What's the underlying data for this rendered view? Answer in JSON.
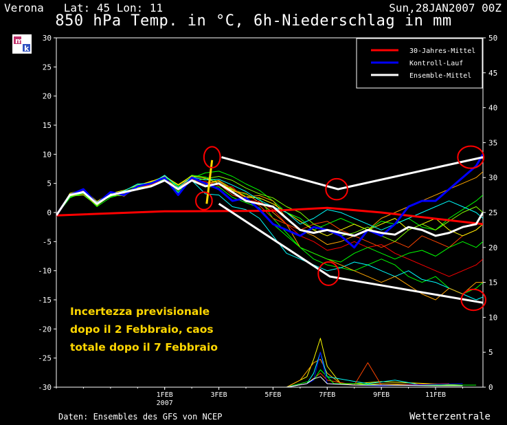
{
  "header": {
    "location": "Verona   Lat: 45 Lon: 11",
    "date": "Sun,28JAN2007 00Z",
    "title": "850 hPa Temp. in °C, 6h-Niederschlag in mm"
  },
  "footer": {
    "source": "Daten: Ensembles des GFS von NCEP",
    "brand": "Wetterzentrale"
  },
  "annotation": {
    "line1": "Incertezza previsionale",
    "line2": "dopo il 2 Febbraio, caos",
    "line3": "totale dopo il 7 Febbraio"
  },
  "colors": {
    "climate": "#ff0000",
    "control": "#0000ff",
    "ensemble_mean": "#ffffff",
    "annotation": "#ffd700",
    "markup": "#ff0000"
  },
  "chart_data": {
    "type": "line",
    "title": "850 hPa Temp. in °C, 6h-Niederschlag in mm",
    "x_ticks": [
      {
        "day": 4,
        "label": "1FEB",
        "sublabel": "2007"
      },
      {
        "day": 6,
        "label": "3FEB"
      },
      {
        "day": 8,
        "label": "5FEB"
      },
      {
        "day": 10,
        "label": "7FEB"
      },
      {
        "day": 12,
        "label": "9FEB"
      },
      {
        "day": 14,
        "label": "11FEB"
      }
    ],
    "x_range_days": [
      0,
      15.75
    ],
    "y_left": {
      "min": -30,
      "max": 30,
      "step": 5,
      "ticks": [
        "30",
        "25",
        "20",
        "15",
        "10",
        "5",
        "0",
        "-5",
        "-10",
        "-15",
        "-20",
        "-25",
        "-30"
      ]
    },
    "y_right": {
      "min": 0,
      "max": 50,
      "step": 5,
      "ticks": [
        "50",
        "45",
        "40",
        "35",
        "30",
        "25",
        "20",
        "15",
        "10",
        "5",
        "0"
      ]
    },
    "legend": {
      "position": "top-right",
      "entries": [
        {
          "label": "30-Jahres-Mittel",
          "color": "#ff0000"
        },
        {
          "label": "Kontroll-Lauf",
          "color": "#0000ff"
        },
        {
          "label": "Ensemble-Mittel",
          "color": "#ffffff"
        }
      ]
    },
    "time_step_days": 0.25,
    "series": [
      {
        "name": "30-Jahres-Mittel",
        "color": "#ff0000",
        "width": 3,
        "x": [
          0,
          4,
          8,
          10,
          12,
          15.75
        ],
        "y": [
          -0.5,
          0.2,
          0.3,
          0.8,
          0,
          -2
        ]
      },
      {
        "name": "Kontroll-Lauf",
        "color": "#0000ff",
        "width": 3,
        "x": [
          0,
          0.5,
          1,
          1.5,
          2,
          2.5,
          3,
          3.5,
          4,
          4.5,
          5,
          5.5,
          6,
          6.5,
          7,
          7.5,
          8,
          8.5,
          9,
          9.5,
          10,
          10.5,
          11,
          11.5,
          12,
          12.5,
          13,
          13.5,
          14,
          14.5,
          15,
          15.5,
          15.75
        ],
        "y": [
          -0.5,
          3,
          4,
          1.5,
          3.5,
          3,
          4.5,
          5,
          6,
          3,
          6,
          5,
          4,
          2,
          2.5,
          0.5,
          -2,
          -3,
          -4,
          -2.5,
          -3,
          -4,
          -6,
          -3,
          -4,
          -2,
          1,
          2,
          2,
          4,
          6,
          8,
          10
        ]
      },
      {
        "name": "Ensemble-Mittel",
        "color": "#ffffff",
        "width": 3,
        "x": [
          0,
          0.5,
          1,
          1.5,
          2,
          2.5,
          3,
          3.5,
          4,
          4.5,
          5,
          5.5,
          6,
          6.5,
          7,
          7.5,
          8,
          8.5,
          9,
          9.5,
          10,
          10.5,
          11,
          11.5,
          12,
          12.5,
          13,
          13.5,
          14,
          14.5,
          15,
          15.5,
          15.75
        ],
        "y": [
          -0.5,
          3,
          3.5,
          1.5,
          3,
          3.5,
          4,
          4.5,
          5.5,
          4,
          5.5,
          4.5,
          5,
          3.5,
          2,
          1.5,
          1,
          -1,
          -3,
          -3.5,
          -3,
          -3.5,
          -4,
          -3,
          -3.5,
          -3.8,
          -2.5,
          -3,
          -4,
          -3.5,
          -2.5,
          -2,
          0
        ]
      }
    ],
    "members": [
      {
        "color": "#00ff00",
        "y": [
          -0.5,
          2.5,
          3.6,
          1.2,
          3.2,
          3.1,
          4.8,
          5.2,
          6.1,
          4.6,
          6.4,
          6.1,
          5.3,
          4.0,
          3.1,
          2.4,
          -1.0,
          -3.5,
          -6.0,
          -8.0,
          -9.0,
          -9.5,
          -10.0,
          -9.0,
          -8.0,
          -9.0,
          -11.0,
          -12.0,
          -11.0,
          -13.0,
          -14.0,
          -13.0,
          -12.0
        ]
      },
      {
        "color": "#00ff00",
        "y": [
          -0.5,
          3.0,
          3.2,
          1.7,
          2.7,
          3.6,
          4.3,
          4.7,
          5.8,
          4.4,
          5.9,
          6.8,
          7.1,
          6.2,
          4.9,
          3.8,
          2.0,
          0.0,
          -1.0,
          -3.0,
          -2.0,
          -1.0,
          -2.0,
          -3.0,
          -1.5,
          -2.0,
          -1.0,
          -2.5,
          -3.0,
          -1.0,
          0.5,
          2.0,
          3.0
        ]
      },
      {
        "color": "#00ffff",
        "y": [
          -0.5,
          2.7,
          3.8,
          1.8,
          2.9,
          3.4,
          4.4,
          4.9,
          5.7,
          3.4,
          5.5,
          3.2,
          3.0,
          1.0,
          0.5,
          -1.0,
          -4.0,
          -7.0,
          -8.0,
          -9.0,
          -10.0,
          -9.5,
          -8.5,
          -9.0,
          -10.0,
          -11.0,
          -10.0,
          -11.5,
          -12.0,
          -13.0,
          -14.0,
          -15.0,
          -14.5
        ]
      },
      {
        "color": "#ffa500",
        "y": [
          -0.5,
          3.2,
          3.5,
          1.1,
          3.4,
          2.8,
          4.6,
          5.4,
          5.9,
          4.1,
          6.2,
          5.0,
          5.5,
          4.1,
          2.7,
          2.9,
          2.0,
          -1.0,
          -3.0,
          -4.0,
          -5.5,
          -5.0,
          -4.0,
          -3.0,
          -1.0,
          0.0,
          1.0,
          2.0,
          3.0,
          4.0,
          5.0,
          6.0,
          7.0
        ]
      },
      {
        "color": "#ffa500",
        "y": [
          -0.5,
          2.9,
          3.4,
          1.6,
          2.8,
          3.5,
          4.0,
          5.1,
          6.3,
          4.7,
          6.0,
          4.8,
          5.4,
          3.7,
          3.3,
          1.7,
          0.0,
          -2.0,
          -6.0,
          -7.0,
          -8.0,
          -9.0,
          -10.0,
          -11.0,
          -12.0,
          -11.0,
          -12.5,
          -14.0,
          -15.0,
          -13.0,
          -14.0,
          -12.0,
          -12.0
        ]
      },
      {
        "color": "#ff0000",
        "y": [
          -0.5,
          2.8,
          3.1,
          1.3,
          3.1,
          3.3,
          4.5,
          4.6,
          6.0,
          3.8,
          5.7,
          5.3,
          4.6,
          4.4,
          2.1,
          1.9,
          0.5,
          -2.0,
          -4.0,
          -5.0,
          -6.5,
          -6.0,
          -5.0,
          -6.0,
          -5.5,
          -7.0,
          -8.0,
          -9.0,
          -10.0,
          -11.0,
          -10.0,
          -9.0,
          -8.0
        ]
      },
      {
        "color": "#ff4500",
        "y": [
          -0.5,
          3.1,
          3.7,
          1.4,
          3.6,
          3.0,
          4.2,
          4.8,
          5.6,
          4.2,
          5.8,
          4.6,
          4.9,
          3.0,
          2.3,
          1.2,
          -1.0,
          -2.0,
          -3.0,
          -2.0,
          -1.5,
          -3.0,
          -4.0,
          -5.0,
          -6.0,
          -5.0,
          -6.0,
          -4.0,
          -5.0,
          -6.0,
          -4.0,
          -3.0,
          -2.0
        ]
      },
      {
        "color": "#ffff00",
        "y": [
          -0.5,
          3.3,
          3.9,
          1.9,
          3.3,
          3.8,
          4.7,
          5.3,
          6.2,
          4.8,
          6.3,
          5.9,
          5.0,
          3.9,
          2.6,
          2.5,
          1.5,
          0.0,
          -1.5,
          -3.0,
          -4.0,
          -3.0,
          -2.0,
          -3.0,
          -2.0,
          -1.0,
          -3.0,
          -2.0,
          -1.0,
          -3.0,
          -4.0,
          -3.0,
          -2.0
        ]
      },
      {
        "color": "#00ff00",
        "y": [
          -0.5,
          2.6,
          3.3,
          1.0,
          2.6,
          3.2,
          4.1,
          4.4,
          5.5,
          3.6,
          5.6,
          4.4,
          4.4,
          2.6,
          1.7,
          0.8,
          -2.0,
          -4.0,
          -6.0,
          -7.0,
          -8.0,
          -8.5,
          -7.0,
          -6.0,
          -7.0,
          -8.0,
          -7.0,
          -6.5,
          -7.5,
          -6.0,
          -5.0,
          -6.0,
          -5.0
        ]
      },
      {
        "color": "#00ffff",
        "y": [
          -0.5,
          3.0,
          3.6,
          1.5,
          3.0,
          3.7,
          4.9,
          5.0,
          6.4,
          4.3,
          6.1,
          5.6,
          5.7,
          4.7,
          3.6,
          2.1,
          1.0,
          0.0,
          -2.0,
          -1.0,
          0.5,
          0.0,
          -1.0,
          -2.0,
          -3.0,
          -2.0,
          -1.0,
          0.0,
          1.0,
          2.0,
          1.0,
          0.0,
          -1.0
        ]
      },
      {
        "color": "#7fff00",
        "y": [
          -0.5,
          2.8,
          3.0,
          1.2,
          2.9,
          2.9,
          4.3,
          4.5,
          5.8,
          3.9,
          5.4,
          5.8,
          6.2,
          5.5,
          4.2,
          3.2,
          2.5,
          1.0,
          0.0,
          -2.0,
          -3.0,
          -4.0,
          -3.5,
          -2.5,
          -4.0,
          -5.0,
          -3.0,
          -2.0,
          -3.0,
          -1.5,
          0.0,
          1.0,
          0.0
        ]
      }
    ],
    "precip_members": [
      {
        "color": "#ffff00",
        "x": [
          8.5,
          9.25,
          9.5,
          9.75,
          10,
          10.5,
          11,
          12,
          15
        ],
        "y": [
          0,
          1.5,
          4,
          7,
          3,
          0.5,
          0.5,
          0.8,
          0.3
        ]
      },
      {
        "color": "#ffa500",
        "x": [
          8.5,
          9,
          9.5,
          9.75,
          10,
          10.5,
          11,
          12,
          15
        ],
        "y": [
          0,
          1,
          3.5,
          4,
          2,
          0.5,
          0.3,
          0.5,
          0.2
        ]
      },
      {
        "color": "#00ffff",
        "x": [
          8.5,
          9.25,
          9.5,
          9.75,
          10,
          11.5,
          12.5,
          13.5,
          14.5
        ],
        "y": [
          0,
          0.5,
          2,
          5,
          1.5,
          0.5,
          1,
          0.3,
          0.5
        ]
      },
      {
        "color": "#ff4500",
        "x": [
          8.5,
          9.25,
          9.75,
          10,
          11,
          11.5,
          12,
          14.5
        ],
        "y": [
          0,
          0.5,
          2,
          1,
          0.3,
          3.5,
          0.3,
          0.5
        ]
      },
      {
        "color": "#00ff00",
        "x": [
          8.5,
          9.5,
          9.75,
          10.25,
          11,
          12,
          13,
          15.5
        ],
        "y": [
          0,
          1,
          2.5,
          0.5,
          0.5,
          0.3,
          0.3,
          0.3
        ]
      },
      {
        "color": "#0000ff",
        "x": [
          8.5,
          9.25,
          9.5,
          9.75,
          10,
          11,
          12,
          15
        ],
        "y": [
          0,
          0.5,
          1,
          5,
          0.5,
          0.3,
          0.2,
          0.5
        ]
      },
      {
        "color": "#ffffff",
        "x": [
          8.5,
          9.25,
          9.5,
          9.75,
          10,
          11,
          12,
          14,
          15
        ],
        "y": [
          0,
          0.5,
          1.2,
          1.5,
          0.5,
          0.3,
          0.3,
          0.2,
          0.2
        ]
      }
    ],
    "overlay": {
      "white_lines": [
        {
          "x": [
            6.1,
            10.4,
            15.75
          ],
          "y": [
            9.5,
            4,
            9.5
          ]
        },
        {
          "x": [
            6.0,
            10.1,
            15.75
          ],
          "y": [
            1.5,
            -11,
            -15.5
          ]
        }
      ],
      "yellow_line": {
        "x": [
          5.55,
          5.75
        ],
        "y": [
          1.5,
          9
        ]
      },
      "circles": [
        {
          "x": 5.75,
          "y": 9.5,
          "rx_days": 0.3,
          "ry_deg": 1.8
        },
        {
          "x": 5.45,
          "y": 2,
          "rx_days": 0.3,
          "ry_deg": 1.5
        },
        {
          "x": 10.35,
          "y": 4,
          "rx_days": 0.4,
          "ry_deg": 1.8
        },
        {
          "x": 10.05,
          "y": -10.5,
          "rx_days": 0.38,
          "ry_deg": 2.0
        },
        {
          "x": 15.3,
          "y": 9.5,
          "rx_days": 0.48,
          "ry_deg": 1.9
        },
        {
          "x": 15.4,
          "y": -15,
          "rx_days": 0.45,
          "ry_deg": 1.8
        }
      ]
    }
  }
}
